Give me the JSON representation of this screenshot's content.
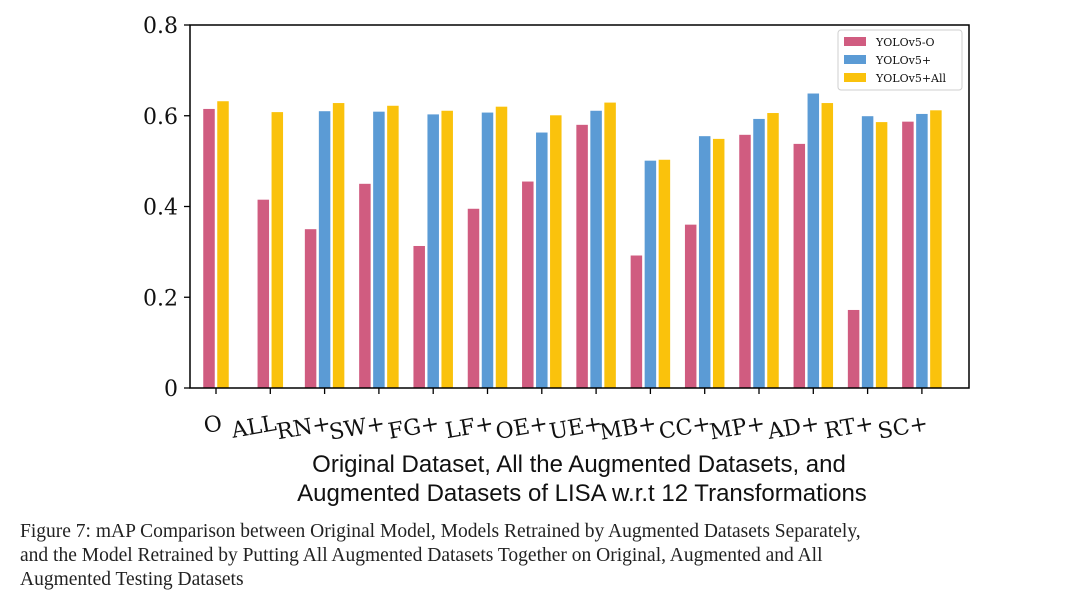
{
  "chart_data": {
    "type": "bar",
    "categories": [
      "O",
      "ALL",
      "RN+",
      "SW+",
      "FG+",
      "LF+",
      "OE+",
      "UE+",
      "MB+",
      "CC+",
      "MP+",
      "AD+",
      "RT+",
      "SC+"
    ],
    "series": [
      {
        "name": "YOLOv5-O",
        "color": "#d05c80",
        "values": [
          0.615,
          0.415,
          0.35,
          0.45,
          0.313,
          0.395,
          0.455,
          0.58,
          0.292,
          0.36,
          0.558,
          0.538,
          0.172,
          0.587
        ]
      },
      {
        "name": "YOLOv5+",
        "color": "#5b9bd5",
        "values": [
          null,
          null,
          0.61,
          0.609,
          0.603,
          0.607,
          0.563,
          0.611,
          0.501,
          0.555,
          0.593,
          0.649,
          0.599,
          0.604
        ]
      },
      {
        "name": "YOLOv5+All",
        "color": "#fac20c",
        "values": [
          0.632,
          0.608,
          0.628,
          0.622,
          0.611,
          0.62,
          0.601,
          0.629,
          0.503,
          0.549,
          0.606,
          0.628,
          0.586,
          0.612
        ]
      }
    ],
    "yticks": [
      0,
      0.2,
      0.4,
      0.6,
      0.8
    ],
    "ytick_labels": [
      "0",
      "0.2",
      "0.4",
      "0.6",
      "0.8"
    ],
    "ylim": [
      0,
      0.8
    ],
    "xlabel_lines": [
      "Original Dataset, All the Augmented Datasets, and",
      "Augmented Datasets of LISA w.r.t 12 Transformations"
    ],
    "legend_position": "top-right",
    "grid": false
  },
  "caption": {
    "lines": [
      "Figure 7: mAP Comparison between Original Model, Models Retrained by Augmented Datasets Separately,",
      "and the Model Retrained by Putting All Augmented Datasets Together on Original, Augmented and All",
      "Augmented Testing Datasets"
    ]
  }
}
